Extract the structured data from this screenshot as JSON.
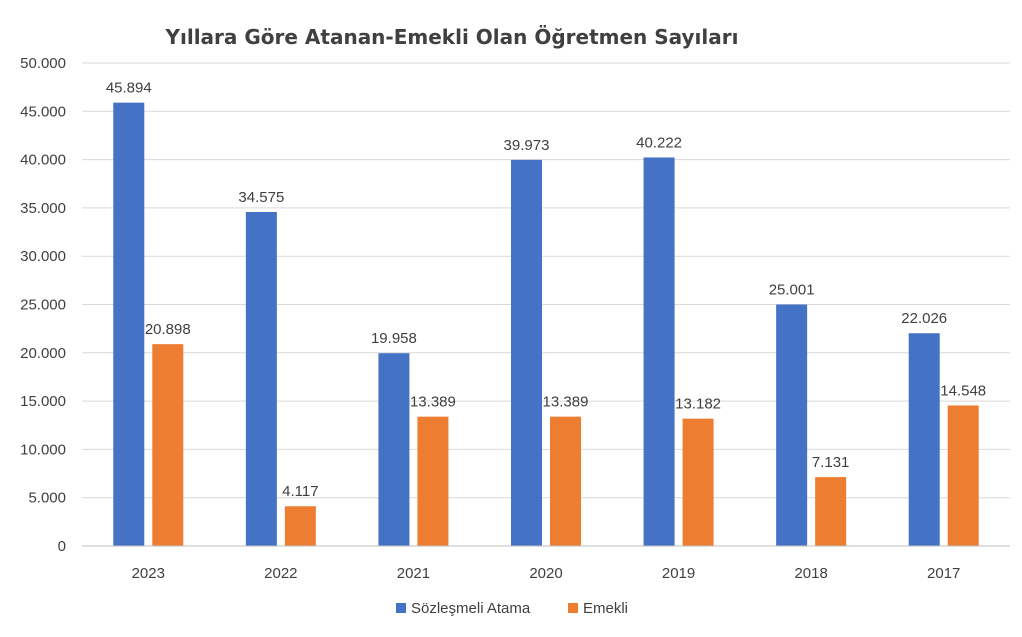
{
  "chart_data": {
    "type": "bar",
    "title": "Yıllara Göre Atanan-Emekli Olan Öğretmen Sayıları",
    "categories": [
      "2023",
      "2022",
      "2021",
      "2020",
      "2019",
      "2018",
      "2017"
    ],
    "series": [
      {
        "name": "Sözleşmeli Atama",
        "color": "#4472c4",
        "values": [
          45894,
          34575,
          19958,
          39973,
          40222,
          25001,
          22026
        ],
        "labels": [
          "45.894",
          "34.575",
          "19.958",
          "39.973",
          "40.222",
          "25.001",
          "22.026"
        ]
      },
      {
        "name": "Emekli",
        "color": "#ed7d31",
        "values": [
          20898,
          4117,
          13389,
          13389,
          13182,
          7131,
          14548
        ],
        "labels": [
          "20.898",
          "4.117",
          "13.389",
          "13.389",
          "13.182",
          "7.131",
          "14.548"
        ]
      }
    ],
    "ylim": [
      0,
      50000
    ],
    "yticks": [
      0,
      5000,
      10000,
      15000,
      20000,
      25000,
      30000,
      35000,
      40000,
      45000,
      50000
    ],
    "ytick_labels": [
      "0",
      "5.000",
      "10.000",
      "15.000",
      "20.000",
      "25.000",
      "30.000",
      "35.000",
      "40.000",
      "45.000",
      "50.000"
    ],
    "grid": true,
    "legend": "bottom"
  }
}
